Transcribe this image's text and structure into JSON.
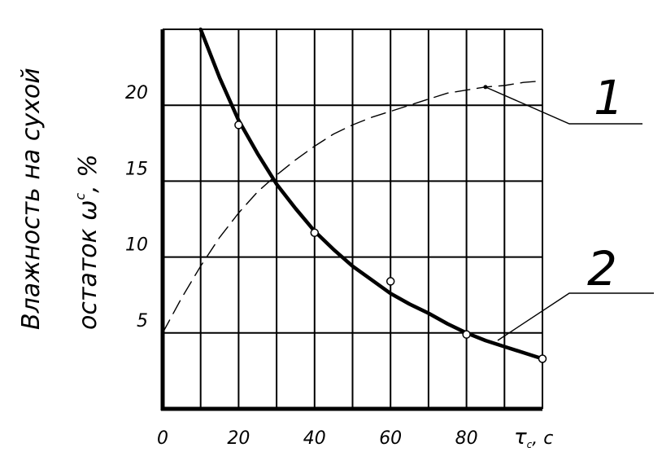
{
  "chart_data": {
    "type": "line",
    "ylabel_line1": "Влажность на сухой",
    "ylabel_line2": "остаток ω",
    "ylabel_sup": "c",
    "ylabel_unit": ", %",
    "xlabel_symbol": "τ",
    "xlabel_sub": "c",
    "xlabel_unit": ", с",
    "xlim": [
      0,
      100
    ],
    "ylim": [
      0,
      25
    ],
    "grid": true,
    "xticks": [
      {
        "value": 0,
        "label": "0"
      },
      {
        "value": 20,
        "label": "20"
      },
      {
        "value": 40,
        "label": "40"
      },
      {
        "value": 60,
        "label": "60"
      },
      {
        "value": 80,
        "label": "80"
      }
    ],
    "yticks": [
      {
        "value": 5,
        "label": "5"
      },
      {
        "value": 10,
        "label": "10"
      },
      {
        "value": 15,
        "label": "15"
      },
      {
        "value": 20,
        "label": "20"
      }
    ],
    "series": [
      {
        "name": "1",
        "style": "dashed",
        "x": [
          0,
          5,
          10,
          15,
          20,
          25,
          30,
          35,
          40,
          45,
          50,
          55,
          60,
          65,
          70,
          75,
          80,
          85,
          90,
          95,
          100
        ],
        "y": [
          5.0,
          7.3,
          9.4,
          11.3,
          12.9,
          14.3,
          15.4,
          16.4,
          17.3,
          18.1,
          18.7,
          19.2,
          19.6,
          20.0,
          20.4,
          20.8,
          21.0,
          21.2,
          21.3,
          21.5,
          21.6
        ],
        "markers": [
          {
            "x": 85,
            "y": 21.2
          }
        ]
      },
      {
        "name": "2",
        "style": "solid",
        "x": [
          10,
          15,
          20,
          25,
          30,
          35,
          40,
          45,
          50,
          55,
          60,
          65,
          70,
          75,
          80,
          85,
          90,
          95,
          100
        ],
        "y": [
          25.0,
          21.8,
          19.0,
          16.8,
          14.8,
          13.2,
          11.7,
          10.5,
          9.4,
          8.5,
          7.6,
          6.9,
          6.3,
          5.6,
          5.0,
          4.5,
          4.1,
          3.7,
          3.3
        ],
        "markers": [
          {
            "x": 20,
            "y": 18.7
          },
          {
            "x": 40,
            "y": 11.6
          },
          {
            "x": 60,
            "y": 8.4
          },
          {
            "x": 80,
            "y": 4.9
          },
          {
            "x": 100,
            "y": 3.3
          }
        ]
      }
    ]
  }
}
